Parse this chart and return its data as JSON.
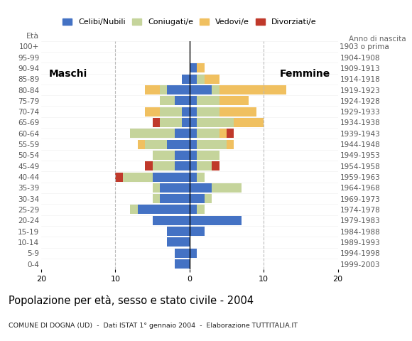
{
  "age_groups": [
    "0-4",
    "5-9",
    "10-14",
    "15-19",
    "20-24",
    "25-29",
    "30-34",
    "35-39",
    "40-44",
    "45-49",
    "50-54",
    "55-59",
    "60-64",
    "65-69",
    "70-74",
    "75-79",
    "80-84",
    "85-89",
    "90-94",
    "95-99",
    "100+"
  ],
  "birth_years": [
    "1999-2003",
    "1994-1998",
    "1989-1993",
    "1984-1988",
    "1979-1983",
    "1974-1978",
    "1969-1973",
    "1964-1968",
    "1959-1963",
    "1954-1958",
    "1949-1953",
    "1944-1948",
    "1939-1943",
    "1934-1938",
    "1929-1933",
    "1924-1928",
    "1919-1923",
    "1914-1918",
    "1909-1913",
    "1904-1908",
    "1903 o prima"
  ],
  "colors": {
    "celibe": "#4472c4",
    "coniugato": "#c5d49b",
    "vedovo": "#f0c060",
    "divorziato": "#c0392b"
  },
  "maschi": {
    "celibe": [
      2,
      2,
      3,
      3,
      5,
      7,
      4,
      4,
      5,
      2,
      2,
      3,
      2,
      1,
      1,
      2,
      3,
      1,
      0,
      0,
      0
    ],
    "coniugato": [
      0,
      0,
      0,
      0,
      0,
      1,
      1,
      1,
      4,
      3,
      3,
      3,
      6,
      3,
      3,
      2,
      1,
      0,
      0,
      0,
      0
    ],
    "vedovo": [
      0,
      0,
      0,
      0,
      0,
      0,
      0,
      0,
      0,
      0,
      0,
      1,
      0,
      0,
      2,
      0,
      2,
      0,
      0,
      0,
      0
    ],
    "divorziato": [
      0,
      0,
      0,
      0,
      0,
      0,
      0,
      0,
      1,
      1,
      0,
      0,
      0,
      1,
      0,
      0,
      0,
      0,
      0,
      0,
      0
    ]
  },
  "femmine": {
    "celibe": [
      0,
      1,
      0,
      2,
      7,
      1,
      2,
      3,
      1,
      1,
      1,
      1,
      1,
      1,
      1,
      1,
      3,
      1,
      1,
      0,
      0
    ],
    "coniugato": [
      0,
      0,
      0,
      0,
      0,
      1,
      1,
      4,
      1,
      2,
      3,
      4,
      3,
      5,
      3,
      3,
      1,
      1,
      0,
      0,
      0
    ],
    "vedovo": [
      0,
      0,
      0,
      0,
      0,
      0,
      0,
      0,
      0,
      0,
      0,
      1,
      1,
      4,
      5,
      4,
      9,
      2,
      1,
      0,
      0
    ],
    "divorziato": [
      0,
      0,
      0,
      0,
      0,
      0,
      0,
      0,
      0,
      1,
      0,
      0,
      1,
      0,
      0,
      0,
      0,
      0,
      0,
      0,
      0
    ]
  },
  "title": "Popolazione per età, sesso e stato civile - 2004",
  "subtitle": "COMUNE DI DOGNA (UD)  -  Dati ISTAT 1° gennaio 2004  -  Elaborazione TUTTITALIA.IT",
  "xlabel_left": "Maschi",
  "xlabel_right": "Femmine",
  "ylabel_left": "Età",
  "ylabel_right": "Anno di nascita",
  "xlim": 20,
  "legend_labels": [
    "Celibi/Nubili",
    "Coniugati/e",
    "Vedovi/e",
    "Divorziati/e"
  ],
  "background_color": "#ffffff",
  "grid_color": "#bbbbbb"
}
